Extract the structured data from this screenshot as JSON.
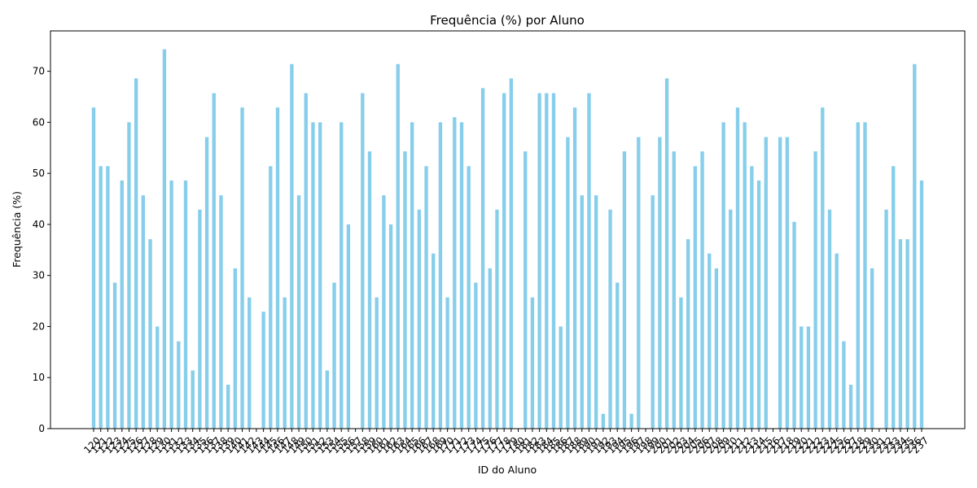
{
  "chart_data": {
    "type": "bar",
    "title": "Frequência (%) por Aluno",
    "xlabel": "ID do Aluno",
    "ylabel": "Frequência (%)",
    "ylim": [
      0,
      77.9
    ],
    "yticks": [
      0,
      10,
      20,
      30,
      40,
      50,
      60,
      70
    ],
    "bar_color": "#87ceeb",
    "grid": false,
    "categories": [
      "120",
      "121",
      "122",
      "123",
      "124",
      "125",
      "126",
      "127",
      "128",
      "129",
      "130",
      "131",
      "132",
      "133",
      "134",
      "135",
      "136",
      "137",
      "138",
      "139",
      "140",
      "141",
      "142",
      "143",
      "144",
      "145",
      "146",
      "147",
      "148",
      "149",
      "150",
      "151",
      "152",
      "153",
      "154",
      "155",
      "156",
      "157",
      "158",
      "159",
      "160",
      "161",
      "162",
      "163",
      "164",
      "165",
      "166",
      "167",
      "168",
      "169",
      "170",
      "171",
      "172",
      "173",
      "174",
      "175",
      "176",
      "177",
      "178",
      "179",
      "180",
      "181",
      "182",
      "183",
      "184",
      "185",
      "186",
      "187",
      "188",
      "189",
      "190",
      "191",
      "192",
      "193",
      "194",
      "195",
      "196",
      "197",
      "198",
      "199",
      "200",
      "201",
      "202",
      "203",
      "204",
      "205",
      "206",
      "207",
      "208",
      "209",
      "210",
      "211",
      "212",
      "213",
      "214",
      "215",
      "216",
      "217",
      "218",
      "219",
      "220",
      "221",
      "222",
      "223",
      "224",
      "225",
      "226",
      "227",
      "228",
      "229",
      "230",
      "231",
      "232",
      "233",
      "234",
      "235",
      "236",
      "237"
    ],
    "values": [
      62.9,
      51.4,
      51.4,
      28.6,
      48.6,
      60.0,
      68.6,
      45.7,
      37.1,
      20.0,
      74.3,
      48.6,
      17.1,
      48.6,
      11.4,
      42.9,
      57.1,
      65.7,
      45.7,
      8.6,
      31.4,
      62.9,
      25.7,
      0,
      22.9,
      51.4,
      62.9,
      25.7,
      71.4,
      45.7,
      65.7,
      60.0,
      60.0,
      11.4,
      28.6,
      60.0,
      40.0,
      0,
      65.7,
      54.3,
      25.7,
      45.7,
      40.0,
      71.4,
      54.3,
      60.0,
      42.9,
      51.4,
      34.3,
      60.0,
      25.7,
      61.0,
      60.0,
      51.4,
      28.6,
      66.7,
      31.4,
      42.9,
      65.7,
      68.6,
      0,
      54.3,
      25.7,
      65.7,
      65.7,
      65.7,
      20.0,
      57.1,
      62.9,
      45.7,
      65.7,
      45.7,
      2.9,
      42.9,
      28.6,
      54.3,
      2.9,
      57.1,
      0,
      45.7,
      57.1,
      68.6,
      54.3,
      25.7,
      37.1,
      51.4,
      54.3,
      34.3,
      31.4,
      60.0,
      42.9,
      62.9,
      60.0,
      51.4,
      48.6,
      57.1,
      0,
      57.1,
      57.1,
      40.5,
      20.0,
      20.0,
      54.3,
      62.9,
      42.9,
      34.3,
      17.1,
      8.6,
      60.0,
      60.0,
      31.4,
      0,
      42.9,
      51.4,
      37.1,
      37.1,
      71.4,
      48.6
    ]
  }
}
